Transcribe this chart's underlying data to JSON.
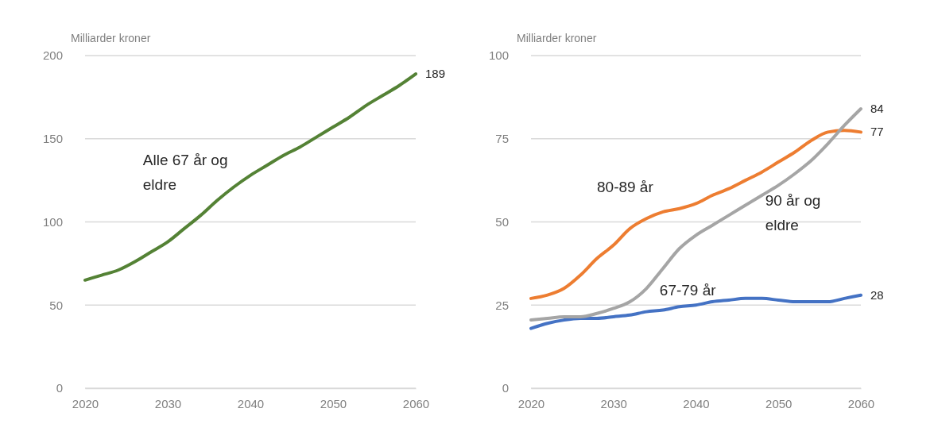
{
  "chart_data": [
    {
      "type": "line",
      "ylabel": "Milliarder kroner",
      "x": [
        2020,
        2022,
        2024,
        2026,
        2028,
        2030,
        2032,
        2034,
        2036,
        2038,
        2040,
        2042,
        2044,
        2046,
        2048,
        2050,
        2052,
        2054,
        2056,
        2058,
        2060
      ],
      "xlim": [
        2020,
        2060
      ],
      "xticks": [
        2020,
        2030,
        2040,
        2050,
        2060
      ],
      "ylim": [
        0,
        200
      ],
      "yticks": [
        0,
        50,
        100,
        150,
        200
      ],
      "grid": "y",
      "series": [
        {
          "name": "Alle 67 år og eldre",
          "color": "#548235",
          "values": [
            65,
            68,
            71,
            76,
            82,
            88,
            96,
            104,
            113,
            121,
            128,
            134,
            140,
            145,
            151,
            157,
            163,
            170,
            176,
            182,
            189
          ],
          "value_labels": [
            null,
            null,
            null,
            null,
            null,
            null,
            null,
            null,
            null,
            null,
            null,
            null,
            null,
            null,
            null,
            null,
            null,
            null,
            null,
            null,
            "189"
          ]
        }
      ]
    },
    {
      "type": "line",
      "ylabel": "Milliarder kroner",
      "x": [
        2020,
        2022,
        2024,
        2026,
        2028,
        2030,
        2032,
        2034,
        2036,
        2038,
        2040,
        2042,
        2044,
        2046,
        2048,
        2050,
        2052,
        2054,
        2056,
        2058,
        2060
      ],
      "xlim": [
        2020,
        2060
      ],
      "xticks": [
        2020,
        2030,
        2040,
        2050,
        2060
      ],
      "ylim": [
        0,
        100
      ],
      "yticks": [
        0,
        25,
        50,
        75,
        100
      ],
      "grid": "y",
      "series": [
        {
          "name": "67-79 år",
          "color": "#4472c4",
          "values": [
            18,
            19.5,
            20.5,
            21,
            21,
            21.5,
            22,
            23,
            23.5,
            24.5,
            25,
            26,
            26.5,
            27,
            27,
            26.5,
            26,
            26,
            26,
            27,
            28
          ],
          "value_labels": [
            null,
            null,
            null,
            null,
            null,
            null,
            null,
            null,
            null,
            null,
            null,
            null,
            null,
            null,
            null,
            null,
            null,
            null,
            null,
            null,
            "28"
          ]
        },
        {
          "name": "80-89 år",
          "color": "#ed7d31",
          "values": [
            27,
            28,
            30,
            34,
            39,
            43,
            48,
            51,
            53,
            54,
            55.5,
            58,
            60,
            62.5,
            65,
            68,
            71,
            74.5,
            77,
            77.5,
            77
          ],
          "value_labels": [
            null,
            null,
            null,
            null,
            null,
            null,
            null,
            null,
            null,
            null,
            null,
            null,
            null,
            null,
            null,
            null,
            null,
            null,
            null,
            null,
            "77"
          ]
        },
        {
          "name": "90 år og eldre",
          "color": "#a5a5a5",
          "values": [
            20.5,
            21,
            21.5,
            21.5,
            22.5,
            24,
            26,
            30,
            36,
            42,
            46,
            49,
            52,
            55,
            58,
            61,
            64.5,
            68.5,
            73.5,
            79,
            84
          ],
          "value_labels": [
            null,
            null,
            null,
            null,
            null,
            null,
            null,
            null,
            null,
            null,
            null,
            null,
            null,
            null,
            null,
            null,
            null,
            null,
            null,
            null,
            "84"
          ]
        }
      ]
    }
  ]
}
